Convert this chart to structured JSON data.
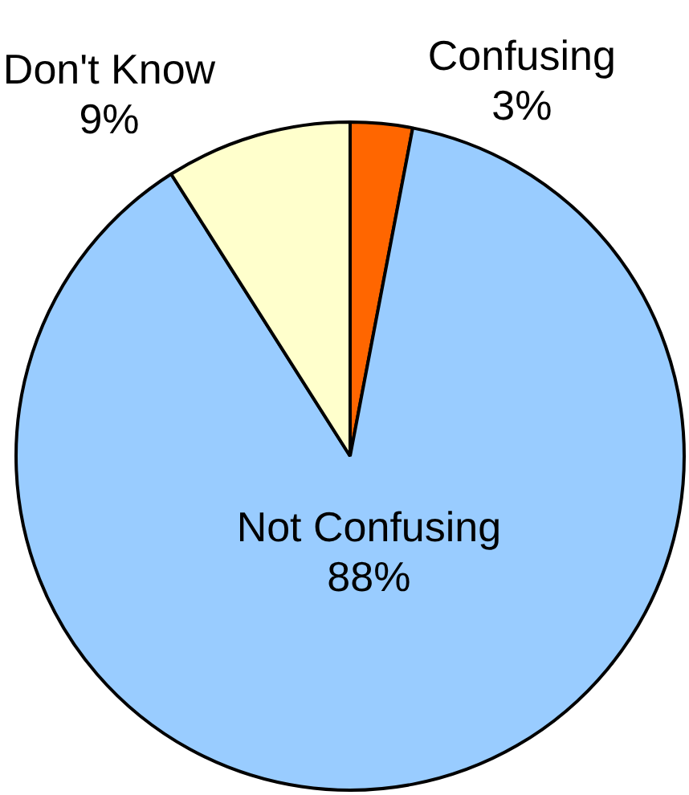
{
  "chart_data": {
    "type": "pie",
    "categories": [
      "Confusing",
      "Not Confusing",
      "Don't Know"
    ],
    "values": [
      3,
      88,
      9
    ],
    "value_labels": [
      "3%",
      "88%",
      "9%"
    ],
    "colors": [
      "#ff6600",
      "#99ccff",
      "#ffffcc"
    ]
  }
}
